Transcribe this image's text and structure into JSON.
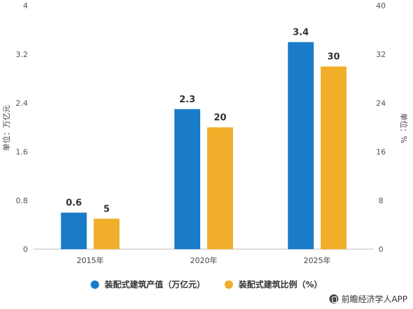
{
  "chart_data": {
    "type": "bar",
    "categories": [
      "2015年",
      "2020年",
      "2025年"
    ],
    "series": [
      {
        "name": "装配式建筑产值（万亿元）",
        "values": [
          0.6,
          2.3,
          3.4
        ],
        "axis": "left",
        "color": "#1a7bc9"
      },
      {
        "name": "装配式建筑比例（%）",
        "values": [
          5,
          20,
          30
        ],
        "axis": "right",
        "color": "#f0ae2a"
      }
    ],
    "ylabel": "单位：万亿元",
    "y2label": "单位：%",
    "ylim": [
      0,
      4
    ],
    "y2lim": [
      0,
      40
    ],
    "yticks": [
      "0",
      "0.8",
      "1.6",
      "2.4",
      "3.2",
      "4"
    ],
    "y2ticks": [
      "0",
      "8",
      "16",
      "24",
      "32",
      "40"
    ],
    "grid": false,
    "legend_position": "bottom"
  },
  "watermark": "前瞻经济学人APP"
}
